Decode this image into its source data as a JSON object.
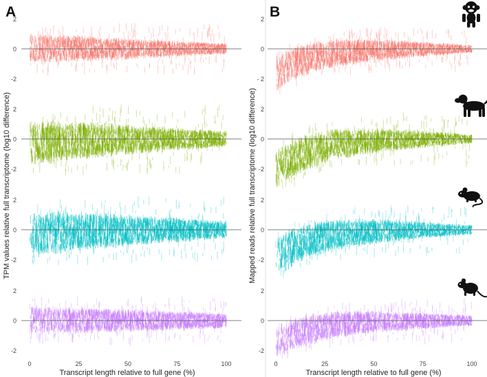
{
  "colors": {
    "primate": "#F8766D",
    "dog": "#7CAE00",
    "mouse": "#00BFC4",
    "rat": "#C77CFF",
    "zero_line": "#555555",
    "tick": "#444444",
    "divider": "#dddddd",
    "silhouette": "#111111"
  },
  "chart_data": [
    {
      "panel_label": "A",
      "type": "scatter",
      "xlabel": "Transcript length relative to full gene (%)",
      "ylabel": "TPM values relative full transcriptome (log10 difference)",
      "xlim": [
        0,
        100
      ],
      "xticks": [
        "0",
        "25",
        "50",
        "75",
        "100"
      ],
      "xtick_values": [
        0,
        25,
        50,
        75,
        100
      ],
      "facets": [
        {
          "species": "primate",
          "icon": "monkey-icon",
          "ylim": [
            -2.9,
            2.9
          ],
          "ytick_values": [
            2,
            0,
            -2
          ],
          "yticks": [
            "2",
            "0",
            "-2"
          ],
          "start_offset": 0.0,
          "decay_scale": 25,
          "band_start": 1.0,
          "band_end": 0.35,
          "spike_scale": 1.1
        },
        {
          "species": "dog",
          "icon": "dog-icon",
          "ylim": [
            -2.9,
            2.9
          ],
          "ytick_values": [
            2,
            0,
            -2
          ],
          "yticks": [
            "2",
            "0",
            "-2"
          ],
          "start_offset": -0.3,
          "decay_scale": 25,
          "band_start": 1.45,
          "band_end": 0.5,
          "spike_scale": 1.7
        },
        {
          "species": "mouse",
          "icon": "mouse-icon",
          "ylim": [
            -2.9,
            2.9
          ],
          "ytick_values": [
            2,
            0,
            -2
          ],
          "yticks": [
            "2",
            "0",
            "-2"
          ],
          "start_offset": -0.35,
          "decay_scale": 25,
          "band_start": 1.5,
          "band_end": 0.55,
          "spike_scale": 1.6
        },
        {
          "species": "rat",
          "icon": "rat-icon",
          "ylim": [
            -2.9,
            2.9
          ],
          "ytick_values": [
            2,
            0,
            -2
          ],
          "yticks": [
            "2",
            "0",
            "-2"
          ],
          "start_offset": 0.0,
          "decay_scale": 25,
          "band_start": 0.95,
          "band_end": 0.5,
          "spike_scale": 1.0
        }
      ]
    },
    {
      "panel_label": "B",
      "type": "scatter",
      "xlabel": "Transcript length relative to full gene (%)",
      "ylabel": "Mapped reads relative full transcriptome (log10 difference)",
      "xlim": [
        0,
        100
      ],
      "xticks": [
        "0",
        "25",
        "50",
        "75",
        "100"
      ],
      "xtick_values": [
        0,
        25,
        50,
        75,
        100
      ],
      "facets": [
        {
          "species": "primate",
          "icon": "monkey-icon",
          "ylim": [
            -2.9,
            2.9
          ],
          "ytick_values": [
            2,
            0,
            -2
          ],
          "yticks": [
            "2",
            "0",
            "- 2"
          ],
          "start_offset": -1.7,
          "decay_scale": 18,
          "band_start": 1.2,
          "band_end": 0.25,
          "spike_scale": 0.9
        },
        {
          "species": "dog",
          "icon": "dog-icon",
          "ylim": [
            -2.9,
            2.9
          ],
          "ytick_values": [
            2,
            0,
            -2
          ],
          "yticks": [
            "2",
            "0",
            "-2"
          ],
          "start_offset": -2.1,
          "decay_scale": 18,
          "band_start": 1.3,
          "band_end": 0.3,
          "spike_scale": 1.2
        },
        {
          "species": "mouse",
          "icon": "mouse-icon",
          "ylim": [
            -2.9,
            2.9
          ],
          "ytick_values": [
            2,
            0,
            -2
          ],
          "yticks": [
            "2",
            "0",
            "-2"
          ],
          "start_offset": -1.9,
          "decay_scale": 18,
          "band_start": 1.3,
          "band_end": 0.3,
          "spike_scale": 1.1
        },
        {
          "species": "rat",
          "icon": "rat-icon",
          "ylim": [
            -2.9,
            2.9
          ],
          "ytick_values": [
            2,
            0,
            -2
          ],
          "yticks": [
            "2",
            "0",
            "-2"
          ],
          "start_offset": -1.6,
          "decay_scale": 18,
          "band_start": 1.1,
          "band_end": 0.35,
          "spike_scale": 0.9
        }
      ]
    }
  ]
}
